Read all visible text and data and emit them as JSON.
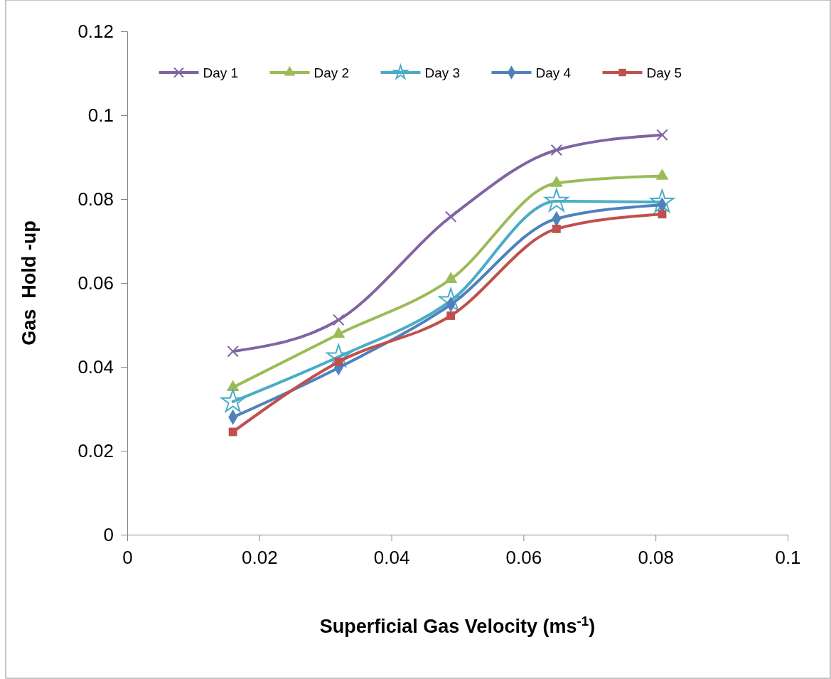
{
  "chart_data": {
    "type": "line",
    "xlabel": "Superficial Gas Velocity (ms$^{-1}$)",
    "ylabel": "Gas  Hold -up",
    "x": [
      0.016,
      0.032,
      0.049,
      0.065,
      0.081
    ],
    "xlim": [
      0,
      0.1
    ],
    "xticks": [
      0,
      0.02,
      0.04,
      0.06,
      0.08,
      0.1
    ],
    "ylim": [
      0,
      0.12
    ],
    "yticks": [
      0,
      0.02,
      0.04,
      0.06,
      0.08,
      0.1,
      0.12
    ],
    "grid": false,
    "legend": "top",
    "series": [
      {
        "name": "Day 1",
        "color": "#8064a2",
        "marker": "cross",
        "values": [
          0.0437,
          0.0512,
          0.0758,
          0.0917,
          0.0953
        ]
      },
      {
        "name": "Day 2",
        "color": "#9bbb59",
        "marker": "triangle",
        "values": [
          0.0351,
          0.0478,
          0.0609,
          0.0838,
          0.0855
        ]
      },
      {
        "name": "Day 3",
        "color": "#4bacc6",
        "marker": "star",
        "values": [
          0.0317,
          0.0424,
          0.0558,
          0.0795,
          0.0793
        ]
      },
      {
        "name": "Day 4",
        "color": "#4f81bd",
        "marker": "diamond",
        "values": [
          0.028,
          0.0398,
          0.0549,
          0.0753,
          0.0786
        ]
      },
      {
        "name": "Day 5",
        "color": "#c0504d",
        "marker": "square",
        "values": [
          0.0245,
          0.0412,
          0.0522,
          0.0729,
          0.0764
        ]
      }
    ]
  }
}
